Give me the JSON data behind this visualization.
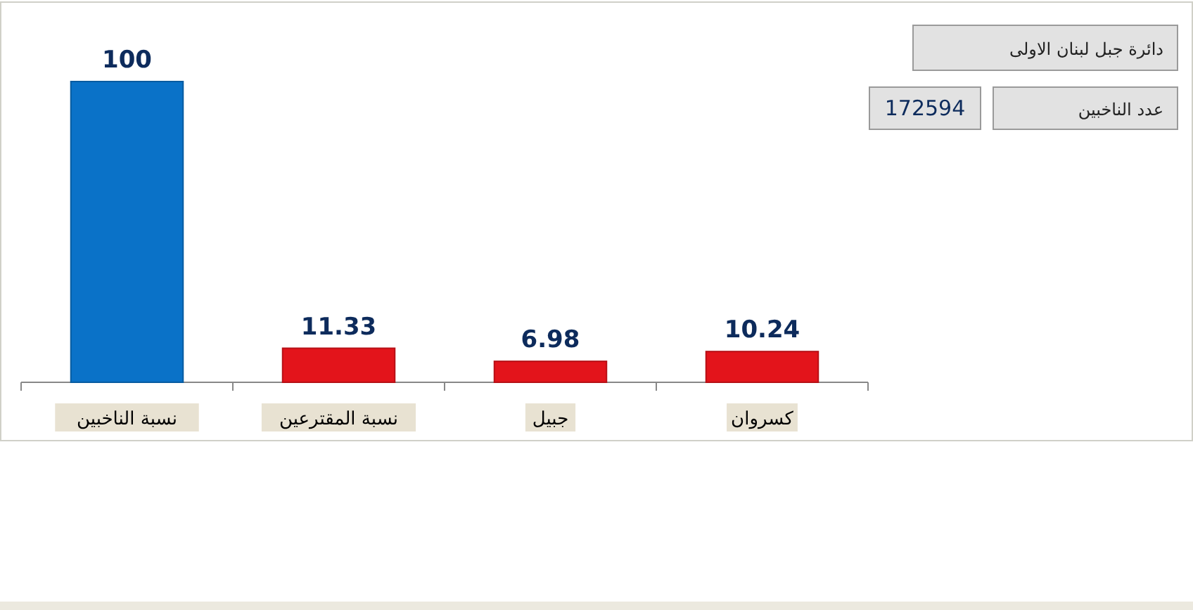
{
  "chart_data": {
    "type": "bar",
    "categories": [
      "نسبة الناخبين",
      "نسبة المقترعين",
      "جبيل",
      "كسروان"
    ],
    "values": [
      100,
      11.33,
      6.98,
      10.24
    ],
    "colors": [
      "#0a72c8",
      "#e3141b",
      "#e3141b",
      "#e3141b"
    ],
    "data_labels": true,
    "annotations": [
      "دائرة جبل لبنان الاولى",
      "عدد الناخبين",
      "172594"
    ]
  }
}
